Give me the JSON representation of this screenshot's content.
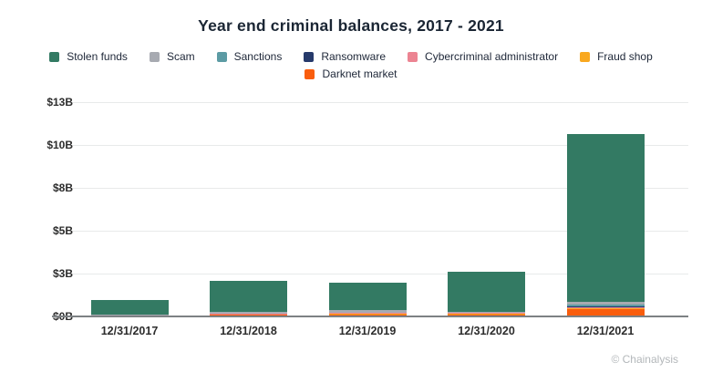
{
  "title": "Year end criminal balances, 2017 - 2021",
  "footer": {
    "credit": "© Chainalysis"
  },
  "chart_data": {
    "type": "bar",
    "stacked": true,
    "title": "Year end criminal balances, 2017 - 2021",
    "categories": [
      "12/31/2017",
      "12/31/2018",
      "12/31/2019",
      "12/31/2020",
      "12/31/2021"
    ],
    "series": [
      {
        "name": "Stolen funds",
        "color": "#337A63",
        "values": [
          0.85,
          1.79,
          1.61,
          2.33,
          9.8
        ]
      },
      {
        "name": "Scam",
        "color": "#A7AAB1",
        "values": [
          0.04,
          0.13,
          0.13,
          0.05,
          0.19
        ]
      },
      {
        "name": "Sanctions",
        "color": "#5C9BA4",
        "values": [
          0.0,
          0.0,
          0.0,
          0.0,
          0.1
        ]
      },
      {
        "name": "Ransomware",
        "color": "#263A6B",
        "values": [
          0.0,
          0.0,
          0.0,
          0.0,
          0.03
        ]
      },
      {
        "name": "Cybercriminal administrator",
        "color": "#EC8492",
        "values": [
          0.06,
          0.01,
          0.01,
          0.02,
          0.02
        ]
      },
      {
        "name": "Fraud shop",
        "color": "#F9A81F",
        "values": [
          0.0,
          0.01,
          0.09,
          0.01,
          0.07
        ]
      },
      {
        "name": "Darknet market",
        "color": "#F95D0D",
        "values": [
          0.02,
          0.13,
          0.13,
          0.17,
          0.45
        ]
      }
    ],
    "totals_estimated": [
      0.97,
      2.07,
      1.97,
      2.58,
      10.66
    ],
    "stack_order": "reverse-legend: Darknet market at bottom, Stolen funds on top",
    "xlabel": "",
    "ylabel": "",
    "ylim": [
      0,
      13.5
    ],
    "y_ticks": [
      {
        "value": 0,
        "label": "$0B"
      },
      {
        "value": 2.5,
        "label": "$3B"
      },
      {
        "value": 5,
        "label": "$5B"
      },
      {
        "value": 7.5,
        "label": "$8B"
      },
      {
        "value": 10,
        "label": "$10B"
      },
      {
        "value": 12.5,
        "label": "$13B"
      }
    ],
    "grid": true,
    "legend_position": "top"
  }
}
